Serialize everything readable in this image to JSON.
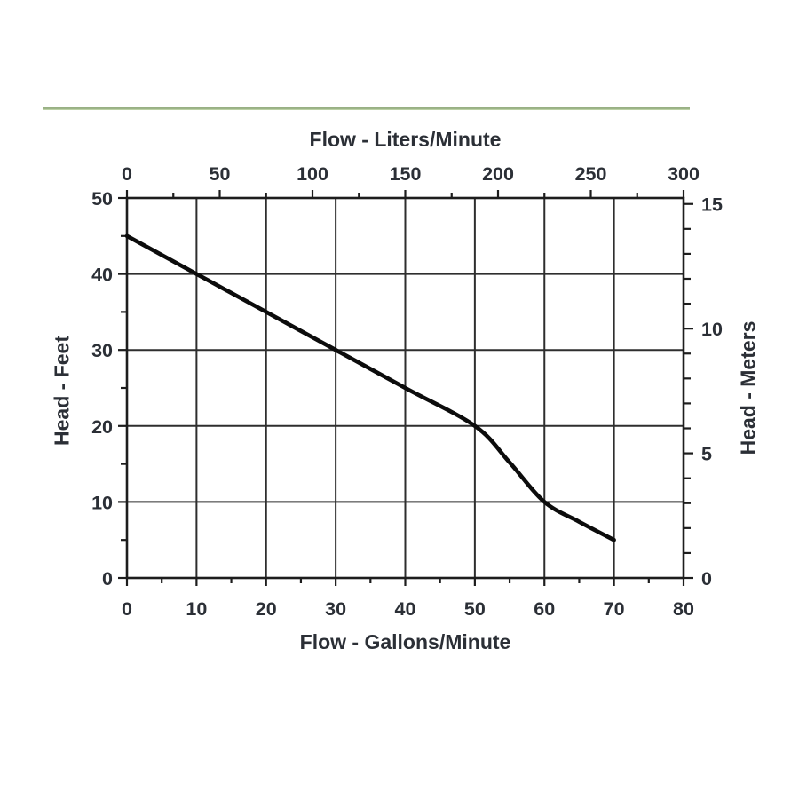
{
  "colors": {
    "background": "#ffffff",
    "divider_green": "#8ea67a",
    "grid": "#2e2e2e",
    "box": "#1d1d1d",
    "curve": "#0c0c0c",
    "text": "#2b2f36"
  },
  "divider": {
    "present": true
  },
  "chart_data": {
    "type": "line",
    "x_bottom": {
      "label": "Flow - Gallons/Minute",
      "min": 0,
      "max": 80,
      "major_ticks": [
        0,
        10,
        20,
        30,
        40,
        50,
        60,
        70,
        80
      ],
      "minor_step": 5
    },
    "x_top": {
      "label": "Flow - Liters/Minute",
      "min": 0,
      "max": 300,
      "major_ticks": [
        0,
        50,
        100,
        150,
        200,
        250,
        300
      ],
      "minor_step": 25
    },
    "y_left": {
      "label": "Head - Feet",
      "min": 0,
      "max": 50,
      "major_ticks": [
        0,
        10,
        20,
        30,
        40,
        50
      ],
      "minor_step": 5
    },
    "y_right": {
      "label": "Head - Meters",
      "min": 0,
      "max": 15.24,
      "major_ticks": [
        0,
        5,
        10,
        15
      ],
      "minor_step": 1
    },
    "grid": true,
    "series": [
      {
        "name": "pump-performance-curve",
        "points_gpm_ft": [
          [
            0,
            45
          ],
          [
            10,
            40
          ],
          [
            20,
            35
          ],
          [
            30,
            30
          ],
          [
            40,
            25
          ],
          [
            50,
            20
          ],
          [
            55,
            15.2
          ],
          [
            60,
            10
          ],
          [
            65,
            7.4
          ],
          [
            70,
            5
          ]
        ]
      }
    ]
  }
}
